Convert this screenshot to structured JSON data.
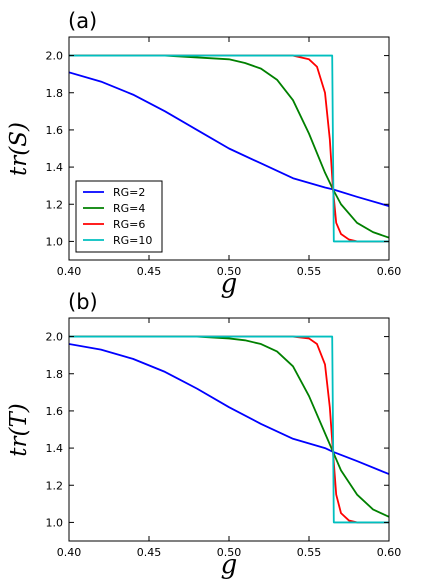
{
  "chart_data": [
    {
      "panel_label": "(a)",
      "type": "line",
      "xlabel": "g",
      "ylabel": "tr(S)",
      "xlim": [
        0.4,
        0.6
      ],
      "ylim": [
        0.9,
        2.1
      ],
      "xticks": [
        "0.40",
        "0.45",
        "0.50",
        "0.55",
        "0.60"
      ],
      "yticks": [
        "1.0",
        "1.2",
        "1.4",
        "1.6",
        "1.8",
        "2.0"
      ],
      "grid": false,
      "legend_position": "lower-left",
      "crossing_x": 0.565,
      "series": [
        {
          "name": "RG=2",
          "color": "#0000ff",
          "x": [
            0.4,
            0.42,
            0.44,
            0.46,
            0.48,
            0.5,
            0.52,
            0.54,
            0.56,
            0.565,
            0.58,
            0.6
          ],
          "values": [
            1.91,
            1.86,
            1.79,
            1.7,
            1.6,
            1.5,
            1.42,
            1.34,
            1.29,
            1.28,
            1.24,
            1.19
          ]
        },
        {
          "name": "RG=4",
          "color": "#008000",
          "x": [
            0.4,
            0.46,
            0.48,
            0.5,
            0.51,
            0.52,
            0.53,
            0.54,
            0.55,
            0.56,
            0.565,
            0.57,
            0.58,
            0.59,
            0.6
          ],
          "values": [
            2.0,
            2.0,
            1.99,
            1.98,
            1.96,
            1.93,
            1.87,
            1.76,
            1.58,
            1.37,
            1.28,
            1.2,
            1.1,
            1.05,
            1.02
          ]
        },
        {
          "name": "RG=6",
          "color": "#ff0000",
          "x": [
            0.4,
            0.54,
            0.55,
            0.555,
            0.56,
            0.563,
            0.565,
            0.567,
            0.57,
            0.575,
            0.58,
            0.6
          ],
          "values": [
            2.0,
            2.0,
            1.98,
            1.94,
            1.8,
            1.55,
            1.28,
            1.1,
            1.04,
            1.01,
            1.0,
            1.0
          ]
        },
        {
          "name": "RG=10",
          "color": "#00bfbf",
          "x": [
            0.4,
            0.5645,
            0.5655,
            0.6
          ],
          "values": [
            2.0,
            2.0,
            1.0,
            1.0
          ]
        }
      ]
    },
    {
      "panel_label": "(b)",
      "type": "line",
      "xlabel": "g",
      "ylabel": "tr(T)",
      "xlim": [
        0.4,
        0.6
      ],
      "ylim": [
        0.9,
        2.1
      ],
      "xticks": [
        "0.40",
        "0.45",
        "0.50",
        "0.55",
        "0.60"
      ],
      "yticks": [
        "1.0",
        "1.2",
        "1.4",
        "1.6",
        "1.8",
        "2.0"
      ],
      "grid": false,
      "legend_position": "none",
      "crossing_x": 0.565,
      "series": [
        {
          "name": "RG=2",
          "color": "#0000ff",
          "x": [
            0.4,
            0.42,
            0.44,
            0.46,
            0.48,
            0.5,
            0.52,
            0.54,
            0.56,
            0.565,
            0.58,
            0.6
          ],
          "values": [
            1.96,
            1.93,
            1.88,
            1.81,
            1.72,
            1.62,
            1.53,
            1.45,
            1.4,
            1.38,
            1.33,
            1.26
          ]
        },
        {
          "name": "RG=4",
          "color": "#008000",
          "x": [
            0.4,
            0.46,
            0.48,
            0.5,
            0.51,
            0.52,
            0.53,
            0.54,
            0.55,
            0.56,
            0.565,
            0.57,
            0.58,
            0.59,
            0.6
          ],
          "values": [
            2.0,
            2.0,
            2.0,
            1.99,
            1.98,
            1.96,
            1.92,
            1.84,
            1.68,
            1.48,
            1.38,
            1.28,
            1.15,
            1.07,
            1.03
          ]
        },
        {
          "name": "RG=6",
          "color": "#ff0000",
          "x": [
            0.4,
            0.54,
            0.55,
            0.555,
            0.56,
            0.563,
            0.565,
            0.567,
            0.57,
            0.575,
            0.58,
            0.6
          ],
          "values": [
            2.0,
            2.0,
            1.99,
            1.96,
            1.85,
            1.62,
            1.38,
            1.15,
            1.05,
            1.01,
            1.0,
            1.0
          ]
        },
        {
          "name": "RG=10",
          "color": "#00bfbf",
          "x": [
            0.4,
            0.5645,
            0.5655,
            0.6
          ],
          "values": [
            2.0,
            2.0,
            1.0,
            1.0
          ]
        }
      ]
    }
  ]
}
